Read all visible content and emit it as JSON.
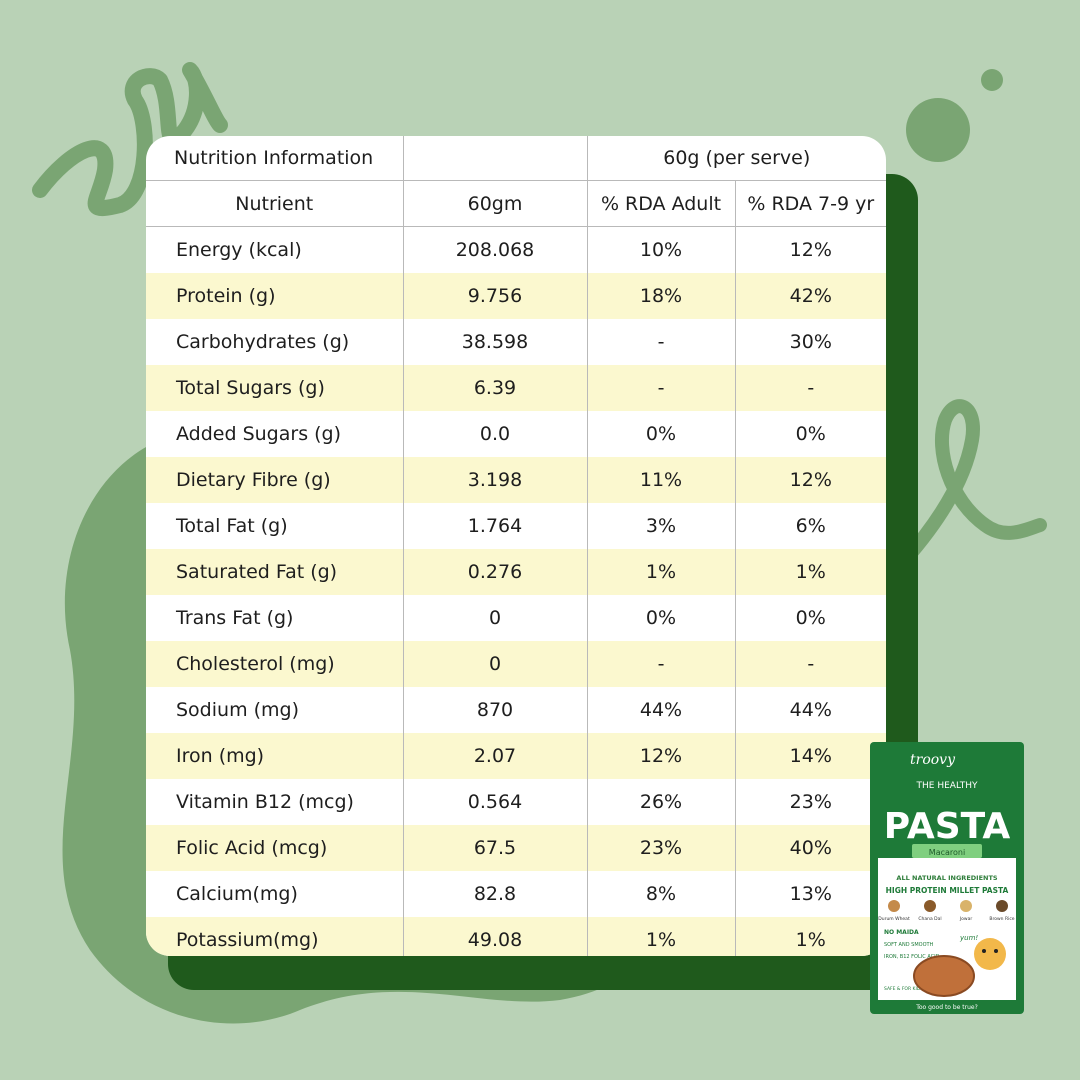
{
  "colors": {
    "background": "#b9d2b6",
    "decor": "#7aa573",
    "shadow_card": "#1f5a1c",
    "row_highlight": "#fbf8cf",
    "pack_green": "#1e7a38"
  },
  "table": {
    "title": "Nutrition Information",
    "serving_header": "60g (per serve)",
    "columns": [
      "Nutrient",
      "60gm",
      "% RDA Adult",
      "% RDA 7-9 yr"
    ],
    "rows": [
      {
        "name": "Energy (kcal)",
        "amount": "208.068",
        "rda_adult": "10%",
        "rda_child": "12%"
      },
      {
        "name": "Protein (g)",
        "amount": "9.756",
        "rda_adult": "18%",
        "rda_child": "42%"
      },
      {
        "name": "Carbohydrates (g)",
        "amount": "38.598",
        "rda_adult": "-",
        "rda_child": "30%"
      },
      {
        "name": "Total Sugars (g)",
        "amount": "6.39",
        "rda_adult": "-",
        "rda_child": "-"
      },
      {
        "name": "Added Sugars (g)",
        "amount": "0.0",
        "rda_adult": "0%",
        "rda_child": "0%"
      },
      {
        "name": "Dietary Fibre (g)",
        "amount": "3.198",
        "rda_adult": "11%",
        "rda_child": "12%"
      },
      {
        "name": "Total Fat (g)",
        "amount": "1.764",
        "rda_adult": "3%",
        "rda_child": "6%"
      },
      {
        "name": "Saturated Fat (g)",
        "amount": "0.276",
        "rda_adult": "1%",
        "rda_child": "1%"
      },
      {
        "name": "Trans Fat (g)",
        "amount": "0",
        "rda_adult": "0%",
        "rda_child": "0%"
      },
      {
        "name": "Cholesterol (mg)",
        "amount": "0",
        "rda_adult": "-",
        "rda_child": "-"
      },
      {
        "name": "Sodium (mg)",
        "amount": "870",
        "rda_adult": "44%",
        "rda_child": "44%"
      },
      {
        "name": "Iron (mg)",
        "amount": "2.07",
        "rda_adult": "12%",
        "rda_child": "14%"
      },
      {
        "name": "Vitamin B12 (mcg)",
        "amount": "0.564",
        "rda_adult": "26%",
        "rda_child": "23%"
      },
      {
        "name": "Folic Acid (mcg)",
        "amount": "67.5",
        "rda_adult": "23%",
        "rda_child": "40%"
      },
      {
        "name": "Calcium(mg)",
        "amount": "82.8",
        "rda_adult": "8%",
        "rda_child": "13%"
      },
      {
        "name": "Potassium(mg)",
        "amount": "49.08",
        "rda_adult": "1%",
        "rda_child": "1%"
      }
    ]
  },
  "package": {
    "brand": "troovy",
    "tagline_top": "THE HEALTHY",
    "product": "PASTA",
    "variant": "Macaroni",
    "claim_1": "ALL NATURAL INGREDIENTS",
    "claim_2": "HIGH PROTEIN MILLET PASTA",
    "ingredients": [
      "Durum Wheat",
      "Chana Dal",
      "Jowar",
      "Brown Rice"
    ],
    "badge_1": "NO MAIDA",
    "badge_2": "SOFT AND SMOOTH",
    "badge_3": "IRON, B12 FOLIC ACID",
    "badge_4": "SAFE & FOR KIDS",
    "yum": "yum!",
    "footer": "Too good to be true?"
  }
}
